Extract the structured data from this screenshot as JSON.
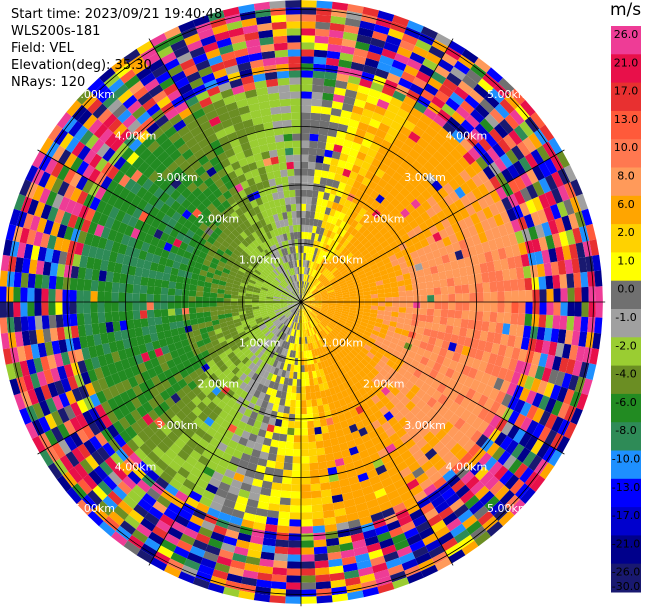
{
  "header": {
    "start_time": "Start time: 2023/09/21 19:40:48",
    "instrument": "WLS200s-181",
    "field": "Field: VEL",
    "elevation": "Elevation(deg): 35.30",
    "nrays": "NRays: 120"
  },
  "chart_data": {
    "type": "heatmap",
    "projection": "polar-ppi",
    "field": "VEL",
    "units": "m/s",
    "n_rays": 120,
    "elevation_deg": 35.3,
    "range_rings_km": [
      1,
      2,
      3,
      4,
      5
    ],
    "range_ring_labels": [
      "1.00km",
      "2.00km",
      "3.00km",
      "4.00km",
      "5.00km"
    ],
    "spokes_deg": [
      0,
      30,
      60,
      90,
      120,
      150,
      180,
      210,
      240,
      270,
      300,
      330
    ],
    "max_range_km": 5.2,
    "colorbar": {
      "ticks": [
        "26.0",
        "21.0",
        "17.0",
        "13.0",
        "10.0",
        "8.0",
        "6.0",
        "2.0",
        "1.0",
        "0.0",
        "-1.0",
        "-2.0",
        "-4.0",
        "-6.0",
        "-8.0",
        "-10.0",
        "-13.0",
        "-17.0",
        "-21.0",
        "-26.0",
        "-30.0"
      ],
      "colors": [
        "#ee3c96",
        "#e8104a",
        "#e83030",
        "#ff5a3a",
        "#ff7850",
        "#ff9a5a",
        "#ffa500",
        "#ffd200",
        "#ffff00",
        "#707070",
        "#a0a0a0",
        "#9acd32",
        "#6b8e23",
        "#228b22",
        "#2e8b57",
        "#1e90ff",
        "#0000ff",
        "#0000cd",
        "#00008b",
        "#191970"
      ]
    },
    "velocity_pattern": {
      "positive_sector_center_deg": 100,
      "negative_sector_center_deg": 280,
      "peak_positive_ms": 8.0,
      "peak_negative_ms": -8.0,
      "noisy_beyond_km": 3.8
    }
  }
}
